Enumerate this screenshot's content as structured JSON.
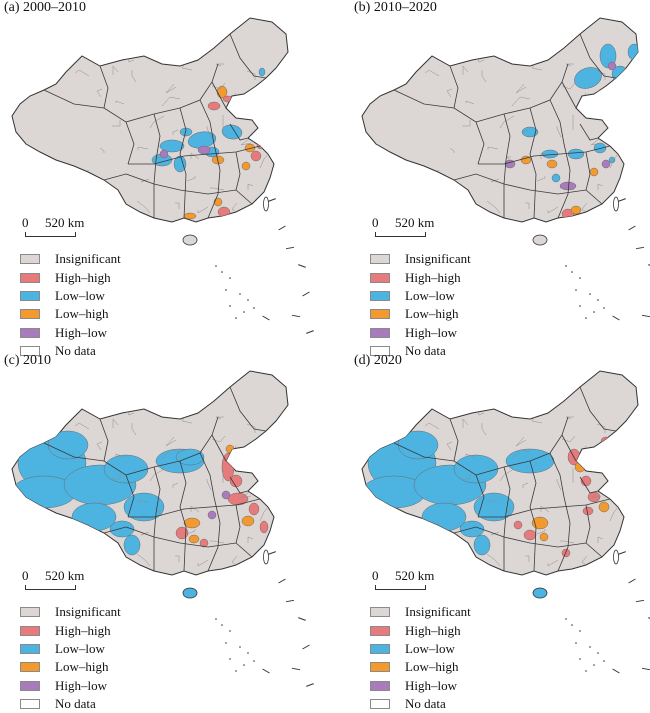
{
  "panels": [
    {
      "title": "(a) 2000–2010",
      "variant": "a"
    },
    {
      "title": "(b) 2010–2020",
      "variant": "b"
    },
    {
      "title": "(c) 2010",
      "variant": "c"
    },
    {
      "title": "(d) 2020",
      "variant": "d"
    }
  ],
  "scale": {
    "zero": "0",
    "distance": "520 km"
  },
  "legend": [
    {
      "label": "Insignificant",
      "color": "#dcd6d4"
    },
    {
      "label": "High–high",
      "color": "#e77b7b"
    },
    {
      "label": "Low–low",
      "color": "#4db3e1"
    },
    {
      "label": "Low–high",
      "color": "#f39a2f"
    },
    {
      "label": "High–low",
      "color": "#a97bbd"
    },
    {
      "label": "No data",
      "color": "#ffffff"
    }
  ]
}
